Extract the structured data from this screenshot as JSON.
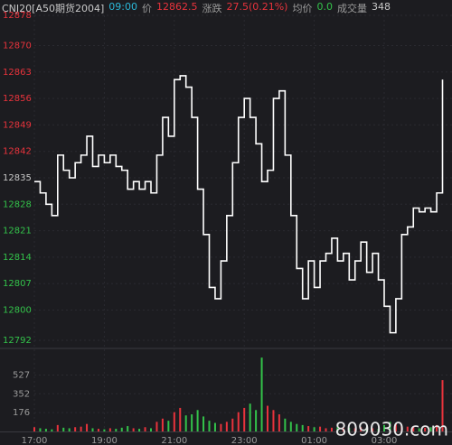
{
  "chart_data": {
    "type": "line",
    "header": [
      {
        "text": "CNJ20[A50期货2004]",
        "color": "#c8c8c8"
      },
      {
        "text": "09:00",
        "color": "#2bb8d8"
      },
      {
        "text": "价",
        "color": "#9a9a9a"
      },
      {
        "text": "12862.5",
        "color": "#e8333c"
      },
      {
        "text": "涨跌",
        "color": "#9a9a9a"
      },
      {
        "text": "27.5(0.21%)",
        "color": "#e8333c"
      },
      {
        "text": "均价",
        "color": "#9a9a9a"
      },
      {
        "text": "0.0",
        "color": "#33c24a"
      },
      {
        "text": "成交量",
        "color": "#9a9a9a"
      },
      {
        "text": "348",
        "color": "#c8c8c8"
      }
    ],
    "watermark": "809030.com",
    "categories": [
      "17:00",
      null,
      null,
      null,
      null,
      null,
      null,
      null,
      null,
      null,
      null,
      null,
      "19:00",
      null,
      null,
      null,
      null,
      null,
      null,
      null,
      null,
      null,
      null,
      null,
      "21:00",
      null,
      null,
      null,
      null,
      null,
      null,
      null,
      null,
      null,
      null,
      null,
      "23:00",
      null,
      null,
      null,
      null,
      null,
      null,
      null,
      null,
      null,
      null,
      null,
      "01:00",
      null,
      null,
      null,
      null,
      null,
      null,
      null,
      null,
      null,
      null,
      null,
      "03:00",
      null,
      null,
      null,
      null,
      null,
      null,
      null,
      null,
      null,
      null
    ],
    "series": [
      {
        "name": "价",
        "color": "#ffffff",
        "values": [
          12834,
          12831,
          12828,
          12825,
          12841,
          12837,
          12835,
          12839,
          12841,
          12846,
          12838,
          12841,
          12839,
          12841,
          12838,
          12837,
          12832,
          12834,
          12832,
          12834,
          12831,
          12841,
          12851,
          12846,
          12861,
          12862,
          12859,
          12851,
          12832,
          12820,
          12806,
          12803,
          12813,
          12825,
          12839,
          12851,
          12856,
          12851,
          12844,
          12834,
          12837,
          12856,
          12858,
          12841,
          12825,
          12811,
          12803,
          12813,
          12806,
          12813,
          12815,
          12819,
          12813,
          12815,
          12808,
          12813,
          12818,
          12810,
          12815,
          12808,
          12801,
          12794,
          12803,
          12820,
          12822,
          12827,
          12826,
          12827,
          12826,
          12831,
          12861
        ]
      },
      {
        "name": "成交量",
        "type": "bar",
        "axis": "y2",
        "values": [
          40,
          30,
          25,
          20,
          60,
          35,
          30,
          40,
          45,
          70,
          30,
          25,
          20,
          30,
          25,
          35,
          50,
          30,
          25,
          40,
          30,
          90,
          120,
          100,
          180,
          220,
          150,
          160,
          200,
          140,
          100,
          80,
          70,
          90,
          120,
          180,
          220,
          260,
          200,
          690,
          240,
          200,
          160,
          120,
          90,
          70,
          60,
          50,
          40,
          45,
          30,
          35,
          40,
          30,
          35,
          30,
          40,
          35,
          30,
          25,
          60,
          90,
          70,
          50,
          45,
          40,
          30,
          35,
          40,
          60,
          480
        ]
      }
    ],
    "up_color": "#e8333c",
    "down_color": "#33c24a",
    "flat_color": "#c8c8c8",
    "ylim": [
      12792,
      12878
    ],
    "yticks": [
      12878,
      12870,
      12863,
      12856,
      12849,
      12842,
      12835,
      12828,
      12821,
      12814,
      12807,
      12800,
      12792
    ],
    "y2lim": [
      0,
      700
    ],
    "y2ticks": [
      527,
      352,
      176
    ],
    "grid": true
  }
}
